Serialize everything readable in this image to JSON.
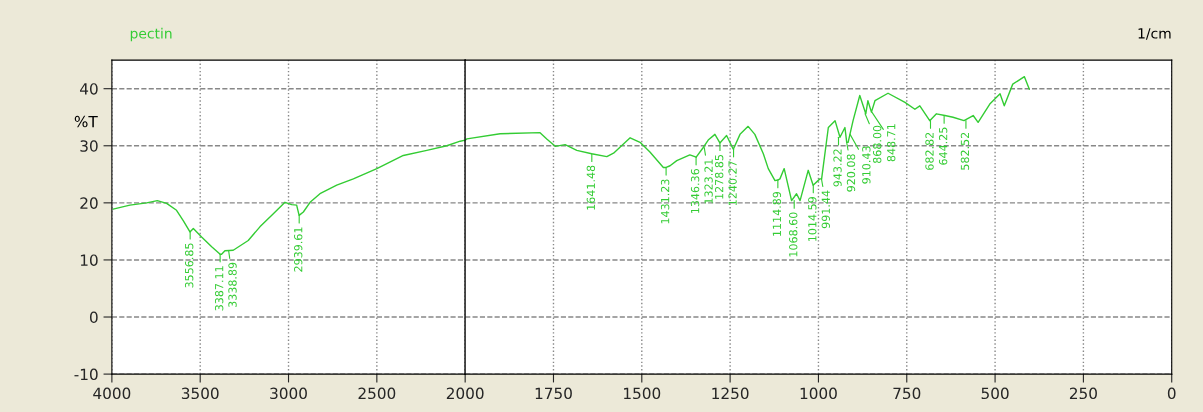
{
  "chart_data": [
    {
      "type": "line",
      "title": "pectin",
      "ylabel": "%T",
      "xlim": [
        4000,
        2000
      ],
      "xticks": [
        4000,
        3500,
        3000,
        2500,
        2000
      ],
      "ylim": [
        -10,
        45
      ],
      "yticks": [
        -10,
        0,
        10,
        20,
        30,
        40
      ],
      "grid": true,
      "marker": "none",
      "line_style": "solid",
      "series": [
        {
          "color": "#33cc33",
          "x": [
            3993,
            3898,
            3803,
            3743,
            3690,
            3634,
            3596,
            3558,
            3539,
            3492,
            3435,
            3387,
            3379,
            3360,
            3313,
            3228,
            3162,
            3086,
            3020,
            2982,
            2954,
            2940,
            2916,
            2878,
            2822,
            2727,
            2633,
            2500,
            2350,
            2217,
            2104,
            2028,
            2000
          ],
          "values": [
            18.9,
            19.6,
            20.0,
            20.4,
            19.9,
            18.7,
            16.9,
            14.9,
            15.5,
            14.0,
            12.3,
            11.0,
            11.0,
            11.6,
            11.7,
            13.4,
            15.8,
            18.1,
            20.1,
            19.7,
            19.6,
            17.8,
            18.4,
            20.1,
            21.6,
            23.1,
            24.2,
            26.0,
            28.3,
            29.2,
            30.0,
            30.8,
            31.0
          ]
        }
      ],
      "annotations": [
        {
          "text": "3556.85",
          "x": 3556.85,
          "y": 15.0
        },
        {
          "text": "3387.11",
          "x": 3387.11,
          "y": 11.0
        },
        {
          "text": "3338.89",
          "x": 3338.89,
          "y": 11.6
        },
        {
          "text": "2939.61",
          "x": 2939.61,
          "y": 17.8
        }
      ]
    },
    {
      "type": "line",
      "xlabel": "1/cm",
      "xlim": [
        2000,
        0
      ],
      "xticks": [
        1750,
        1500,
        1250,
        1000,
        750,
        500,
        250,
        0
      ],
      "ylim": [
        -10,
        45
      ],
      "yticks": [
        -10,
        0,
        10,
        20,
        30,
        40
      ],
      "tick_labels": "x",
      "grid": true,
      "marker": "none",
      "line_style": "solid",
      "series": [
        {
          "color": "#33cc33",
          "x": [
            2000,
            1995,
            1901,
            1788,
            1769,
            1745,
            1717,
            1684,
            1642,
            1599,
            1580,
            1533,
            1505,
            1477,
            1439,
            1431,
            1420,
            1401,
            1364,
            1346,
            1326,
            1312,
            1293,
            1279,
            1260,
            1241,
            1222,
            1199,
            1180,
            1156,
            1142,
            1123,
            1115,
            1109,
            1097,
            1076,
            1062,
            1052,
            1029,
            1015,
            996,
            991,
            972,
            953,
            939,
            925,
            920,
            916,
            902,
            883,
            866,
            860,
            850,
            840,
            803,
            755,
            727,
            713,
            685,
            666,
            642,
            619,
            588,
            562,
            548,
            515,
            486,
            474,
            450,
            417,
            403
          ],
          "values": [
            31.0,
            31.2,
            32.1,
            32.3,
            31.2,
            29.9,
            30.2,
            29.2,
            28.6,
            28.1,
            28.7,
            31.4,
            30.6,
            28.9,
            26.2,
            26.2,
            26.5,
            27.4,
            28.4,
            28.0,
            29.7,
            31.0,
            32.0,
            30.5,
            31.8,
            29.4,
            32.0,
            33.4,
            32.0,
            28.6,
            26.0,
            23.9,
            24.0,
            24.2,
            26.0,
            20.4,
            21.6,
            20.4,
            25.7,
            23.1,
            24.2,
            24.2,
            33.2,
            34.4,
            31.5,
            33.2,
            30.6,
            30.6,
            34.4,
            38.8,
            35.6,
            37.9,
            35.9,
            37.9,
            39.2,
            37.6,
            36.4,
            37.0,
            34.4,
            35.6,
            35.3,
            35.0,
            34.4,
            35.3,
            34.1,
            37.3,
            39.1,
            37.0,
            40.8,
            42.1,
            39.9
          ]
        }
      ],
      "annotations": [
        {
          "text": "1641.48",
          "x": 1641.48,
          "y": 28.6
        },
        {
          "text": "1431.23",
          "x": 1431.23,
          "y": 26.2
        },
        {
          "text": "1346.36",
          "x": 1346.36,
          "y": 28.0
        },
        {
          "text": "1323.21",
          "x": 1323.21,
          "y": 29.7
        },
        {
          "text": "1278.85",
          "x": 1278.85,
          "y": 30.5
        },
        {
          "text": "1240.27",
          "x": 1240.27,
          "y": 29.4
        },
        {
          "text": "1114.89",
          "x": 1114.89,
          "y": 24.0
        },
        {
          "text": "1068.60",
          "x": 1068.6,
          "y": 20.4
        },
        {
          "text": "1014.59",
          "x": 1014.59,
          "y": 23.1
        },
        {
          "text": "991.44",
          "x": 991.44,
          "y": 24.2
        },
        {
          "text": "943.22",
          "x": 943.22,
          "y": 31.5
        },
        {
          "text": "920.08",
          "x": 920.08,
          "y": 30.6
        },
        {
          "text": "910.43",
          "x": 910.43,
          "y": 32.0
        },
        {
          "text": "868.00",
          "x": 868.0,
          "y": 35.6
        },
        {
          "text": "848.71",
          "x": 848.71,
          "y": 35.9
        },
        {
          "text": "682.82",
          "x": 682.82,
          "y": 34.4
        },
        {
          "text": "644.25",
          "x": 644.25,
          "y": 35.3
        },
        {
          "text": "582.52",
          "x": 582.52,
          "y": 34.4
        }
      ]
    }
  ]
}
